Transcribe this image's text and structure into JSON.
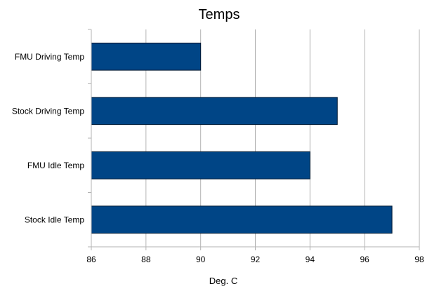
{
  "chart_data": {
    "type": "bar",
    "orientation": "horizontal",
    "title": "Temps",
    "xlabel": "Deg. C",
    "ylabel": "",
    "categories": [
      "FMU Driving Temp",
      "Stock Driving Temp",
      "FMU Idle Temp",
      "Stock Idle Temp"
    ],
    "values": [
      90,
      95,
      94,
      97
    ],
    "xlim": [
      86,
      98
    ],
    "xticks": [
      86,
      88,
      90,
      92,
      94,
      96,
      98
    ],
    "grid": true,
    "legend": "none",
    "bar_color": "#004586"
  }
}
